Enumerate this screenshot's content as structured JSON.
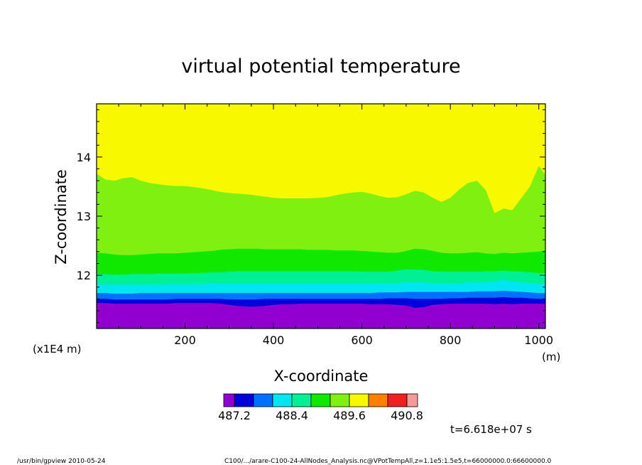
{
  "chart_data": {
    "type": "heatmap",
    "title": "virtual potential temperature",
    "xlabel": "X-coordinate",
    "ylabel": "Z-coordinate",
    "x_unit": "(m)",
    "y_scale_note": "(x1E4 m)",
    "xlim": [
      0,
      1015
    ],
    "ylim": [
      11.1,
      14.9
    ],
    "x_ticks": [
      "200",
      "400",
      "600",
      "800",
      "1000"
    ],
    "x_tick_values": [
      200,
      400,
      600,
      800,
      1000
    ],
    "y_ticks": [
      "12",
      "13",
      "14"
    ],
    "y_tick_values": [
      12,
      13,
      14
    ],
    "x_samples": [
      0,
      20,
      40,
      60,
      80,
      100,
      120,
      140,
      160,
      180,
      200,
      220,
      240,
      260,
      280,
      300,
      320,
      340,
      360,
      380,
      400,
      420,
      440,
      460,
      480,
      500,
      520,
      540,
      560,
      580,
      600,
      620,
      640,
      660,
      680,
      700,
      720,
      740,
      760,
      780,
      800,
      820,
      840,
      860,
      880,
      900,
      920,
      940,
      960,
      980,
      1000,
      1015
    ],
    "contour_boundaries": [
      {
        "color": "#9100d1",
        "z": [
          11.53,
          11.53,
          11.52,
          11.52,
          11.52,
          11.52,
          11.52,
          11.52,
          11.52,
          11.53,
          11.53,
          11.53,
          11.53,
          11.53,
          11.52,
          11.5,
          11.48,
          11.47,
          11.47,
          11.48,
          11.5,
          11.51,
          11.51,
          11.52,
          11.52,
          11.52,
          11.52,
          11.52,
          11.52,
          11.52,
          11.52,
          11.51,
          11.51,
          11.51,
          11.5,
          11.49,
          11.45,
          11.46,
          11.5,
          11.51,
          11.52,
          11.52,
          11.52,
          11.52,
          11.52,
          11.51,
          11.52,
          11.51,
          11.52,
          11.52,
          11.52,
          11.52
        ]
      },
      {
        "color": "#0000d8",
        "z": [
          11.6,
          11.6,
          11.59,
          11.59,
          11.59,
          11.59,
          11.59,
          11.59,
          11.59,
          11.6,
          11.6,
          11.6,
          11.6,
          11.6,
          11.6,
          11.59,
          11.59,
          11.59,
          11.59,
          11.6,
          11.6,
          11.6,
          11.6,
          11.6,
          11.6,
          11.6,
          11.6,
          11.6,
          11.6,
          11.6,
          11.6,
          11.6,
          11.6,
          11.61,
          11.61,
          11.61,
          11.6,
          11.6,
          11.6,
          11.6,
          11.61,
          11.61,
          11.62,
          11.62,
          11.62,
          11.62,
          11.63,
          11.62,
          11.62,
          11.61,
          11.6,
          11.6
        ]
      },
      {
        "color": "#0070ff",
        "z": [
          11.7,
          11.7,
          11.69,
          11.69,
          11.69,
          11.7,
          11.7,
          11.7,
          11.7,
          11.7,
          11.7,
          11.7,
          11.7,
          11.7,
          11.7,
          11.7,
          11.7,
          11.7,
          11.7,
          11.7,
          11.7,
          11.7,
          11.7,
          11.7,
          11.7,
          11.7,
          11.7,
          11.7,
          11.7,
          11.7,
          11.7,
          11.7,
          11.71,
          11.71,
          11.71,
          11.72,
          11.72,
          11.72,
          11.72,
          11.72,
          11.72,
          11.72,
          11.72,
          11.73,
          11.73,
          11.73,
          11.74,
          11.73,
          11.72,
          11.71,
          11.7,
          11.7
        ]
      },
      {
        "color": "#00e6f0",
        "z": [
          11.85,
          11.85,
          11.84,
          11.84,
          11.84,
          11.84,
          11.84,
          11.84,
          11.85,
          11.85,
          11.85,
          11.85,
          11.85,
          11.86,
          11.86,
          11.86,
          11.86,
          11.86,
          11.86,
          11.86,
          11.86,
          11.86,
          11.86,
          11.86,
          11.86,
          11.86,
          11.86,
          11.86,
          11.86,
          11.86,
          11.86,
          11.86,
          11.86,
          11.87,
          11.87,
          11.88,
          11.88,
          11.88,
          11.87,
          11.87,
          11.87,
          11.87,
          11.88,
          11.88,
          11.88,
          11.9,
          11.92,
          11.9,
          11.88,
          11.87,
          11.86,
          11.86
        ]
      },
      {
        "color": "#00f096",
        "z": [
          12.02,
          12.02,
          12.01,
          12.01,
          12.02,
          12.02,
          12.02,
          12.03,
          12.03,
          12.03,
          12.03,
          12.04,
          12.04,
          12.05,
          12.05,
          12.06,
          12.07,
          12.07,
          12.07,
          12.07,
          12.07,
          12.07,
          12.07,
          12.07,
          12.07,
          12.07,
          12.07,
          12.07,
          12.07,
          12.07,
          12.06,
          12.06,
          12.06,
          12.06,
          12.08,
          12.1,
          12.1,
          12.09,
          12.07,
          12.06,
          12.06,
          12.06,
          12.06,
          12.06,
          12.07,
          12.07,
          12.08,
          12.07,
          12.06,
          12.05,
          12.04,
          12.04
        ]
      },
      {
        "color": "#10e800",
        "z": [
          12.38,
          12.37,
          12.35,
          12.34,
          12.34,
          12.35,
          12.36,
          12.37,
          12.37,
          12.37,
          12.38,
          12.39,
          12.4,
          12.41,
          12.43,
          12.44,
          12.45,
          12.45,
          12.45,
          12.44,
          12.44,
          12.44,
          12.44,
          12.44,
          12.43,
          12.43,
          12.43,
          12.42,
          12.42,
          12.42,
          12.41,
          12.4,
          12.39,
          12.38,
          12.38,
          12.41,
          12.45,
          12.44,
          12.41,
          12.38,
          12.37,
          12.37,
          12.38,
          12.39,
          12.37,
          12.36,
          12.38,
          12.37,
          12.38,
          12.39,
          12.4,
          12.42
        ]
      },
      {
        "color": "#80f010",
        "z": [
          13.72,
          13.62,
          13.6,
          13.64,
          13.66,
          13.6,
          13.56,
          13.54,
          13.52,
          13.51,
          13.51,
          13.49,
          13.47,
          13.44,
          13.41,
          13.39,
          13.38,
          13.37,
          13.35,
          13.33,
          13.31,
          13.3,
          13.3,
          13.3,
          13.3,
          13.31,
          13.32,
          13.35,
          13.38,
          13.4,
          13.41,
          13.38,
          13.34,
          13.31,
          13.32,
          13.37,
          13.43,
          13.4,
          13.31,
          13.24,
          13.31,
          13.45,
          13.56,
          13.6,
          13.44,
          13.05,
          13.13,
          13.1,
          13.3,
          13.5,
          13.85,
          13.7
        ]
      }
    ],
    "top_color": "#f8f800",
    "colorbar": {
      "colors": [
        "#9100d1",
        "#0000d8",
        "#0070ff",
        "#00e6f0",
        "#00f096",
        "#10e800",
        "#80f010",
        "#f8f800",
        "#ff8000",
        "#f02020",
        "#f49a9a"
      ],
      "labels": [
        "487.2",
        "488.4",
        "489.6",
        "490.8"
      ],
      "label_boundary_index": [
        1,
        4,
        7,
        10
      ]
    },
    "time_label": "t=6.618e+07 s"
  },
  "footer": {
    "left": "/usr/bin/gpview  2010-05-24",
    "right": "C100/.../arare-C100-24-AllNodes_Analysis.nc@VPotTempAll,z=1.1e5:1.5e5,t=66000000.0:66600000.0"
  }
}
